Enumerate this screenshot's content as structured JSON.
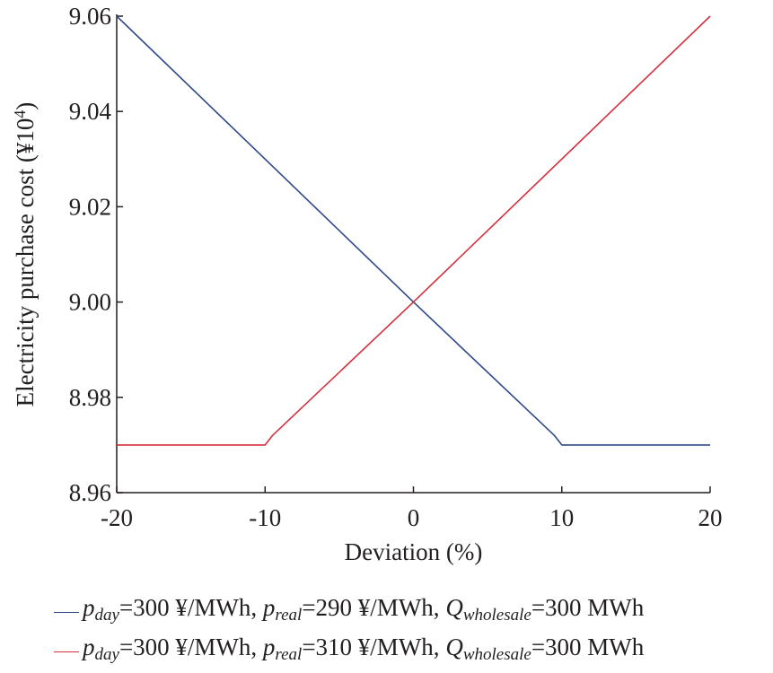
{
  "chart_data": {
    "type": "line",
    "xlabel": "Deviation (%)",
    "ylabel_prefix": "Electricity purchase cost (¥10",
    "ylabel_exp": "4",
    "ylabel_suffix": ")",
    "xlim": [
      -20,
      20
    ],
    "ylim": [
      8.96,
      9.06
    ],
    "x_ticks": [
      -20,
      -10,
      0,
      10,
      20
    ],
    "y_ticks": [
      8.96,
      8.98,
      9.0,
      9.02,
      9.04,
      9.06
    ],
    "grid": false,
    "legend_position": "bottom",
    "series": [
      {
        "name": "p_day=300 ¥/MWh, p_real=290 ¥/MWh, Q_wholesale=300 MWh",
        "color": "#2e4a8a",
        "points": [
          [
            -20,
            9.06
          ],
          [
            0,
            9.0
          ],
          [
            9.5,
            8.972
          ],
          [
            10,
            8.97
          ],
          [
            20,
            8.97
          ]
        ]
      },
      {
        "name": "p_day=300 ¥/MWh, p_real=310 ¥/MWh, Q_wholesale=300 MWh",
        "color": "#d62f3c",
        "points": [
          [
            -20,
            8.97
          ],
          [
            -10,
            8.97
          ],
          [
            -9.5,
            8.972
          ],
          [
            0,
            9.0
          ],
          [
            20,
            9.06
          ]
        ]
      }
    ]
  },
  "legend": [
    {
      "p_day_sym": "p",
      "p_day_sub": "day",
      "p_day_val": "=300 ¥/MWh, ",
      "p_real_sym": "p",
      "p_real_sub": "real",
      "p_real_val": "=290 ¥/MWh, ",
      "q_sym": "Q",
      "q_sub": "wholesale",
      "q_val": "=300 MWh"
    },
    {
      "p_day_sym": "p",
      "p_day_sub": "day",
      "p_day_val": "=300 ¥/MWh, ",
      "p_real_sym": "p",
      "p_real_sub": "real",
      "p_real_val": "=310 ¥/MWh, ",
      "q_sym": "Q",
      "q_sub": "wholesale",
      "q_val": "=300 MWh"
    }
  ]
}
